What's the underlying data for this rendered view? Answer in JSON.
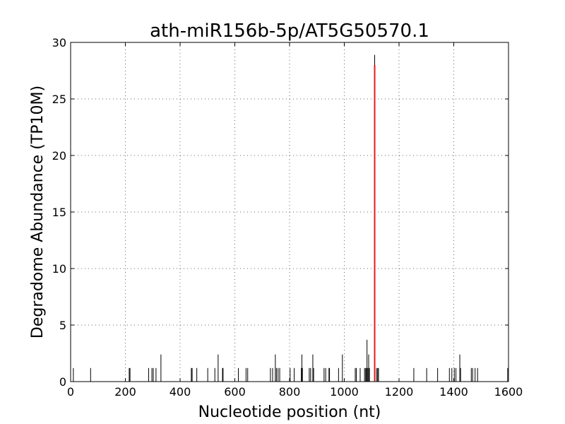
{
  "chart_data": {
    "type": "bar",
    "title": "ath-miR156b-5p/AT5G50570.1",
    "xlabel": "Nucleotide position (nt)",
    "ylabel": "Degradome Abundance (TP10M)",
    "xlim": [
      0,
      1600
    ],
    "ylim": [
      0,
      30
    ],
    "xticks": [
      "0",
      "200",
      "400",
      "600",
      "800",
      "1000",
      "1200",
      "1400",
      "1600"
    ],
    "yticks": [
      "0",
      "5",
      "10",
      "15",
      "20",
      "25",
      "30"
    ],
    "grid": true,
    "series": [
      {
        "color": "#000000",
        "points": [
          [
            10,
            1.2
          ],
          [
            73,
            1.2
          ],
          [
            214,
            1.2
          ],
          [
            217,
            1.2
          ],
          [
            285,
            1.2
          ],
          [
            297,
            1.2
          ],
          [
            302,
            1.2
          ],
          [
            312,
            1.2
          ],
          [
            330,
            2.4
          ],
          [
            441,
            1.2
          ],
          [
            444,
            1.2
          ],
          [
            461,
            1.2
          ],
          [
            501,
            1.2
          ],
          [
            527,
            1.2
          ],
          [
            539,
            2.4
          ],
          [
            555,
            1.2
          ],
          [
            557,
            1.2
          ],
          [
            613,
            1.2
          ],
          [
            641,
            1.2
          ],
          [
            647,
            1.2
          ],
          [
            730,
            1.2
          ],
          [
            738,
            1.2
          ],
          [
            748,
            2.4
          ],
          [
            752,
            1.2
          ],
          [
            758,
            1.2
          ],
          [
            764,
            1.2
          ],
          [
            802,
            1.2
          ],
          [
            817,
            1.2
          ],
          [
            843,
            1.2
          ],
          [
            845,
            2.4
          ],
          [
            847,
            1.2
          ],
          [
            872,
            1.2
          ],
          [
            877,
            1.2
          ],
          [
            885,
            2.4
          ],
          [
            888,
            1.2
          ],
          [
            926,
            1.2
          ],
          [
            932,
            1.2
          ],
          [
            944,
            1.2
          ],
          [
            946,
            1.2
          ],
          [
            979,
            1.2
          ],
          [
            993,
            2.4
          ],
          [
            1040,
            1.2
          ],
          [
            1044,
            1.2
          ],
          [
            1058,
            1.2
          ],
          [
            1074,
            1.2
          ],
          [
            1078,
            1.2
          ],
          [
            1081,
            1.2
          ],
          [
            1083,
            3.7
          ],
          [
            1086,
            1.2
          ],
          [
            1089,
            2.4
          ],
          [
            1092,
            1.2
          ],
          [
            1111,
            28.9
          ],
          [
            1118,
            1.2
          ],
          [
            1122,
            1.2
          ],
          [
            1125,
            1.2
          ],
          [
            1254,
            1.2
          ],
          [
            1301,
            1.2
          ],
          [
            1341,
            1.2
          ],
          [
            1384,
            1.2
          ],
          [
            1393,
            1.2
          ],
          [
            1402,
            1.2
          ],
          [
            1408,
            1.2
          ],
          [
            1422,
            2.4
          ],
          [
            1425,
            1.2
          ],
          [
            1464,
            1.2
          ],
          [
            1469,
            1.2
          ],
          [
            1478,
            1.2
          ],
          [
            1487,
            1.2
          ],
          [
            1597,
            1.2
          ]
        ]
      },
      {
        "color": "#e31a1c",
        "points": [
          [
            1111,
            28.0
          ]
        ]
      }
    ]
  }
}
